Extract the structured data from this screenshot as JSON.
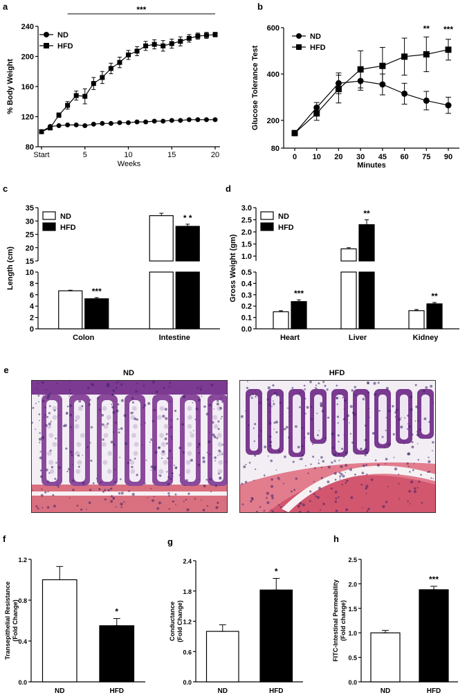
{
  "chart_data": [
    {
      "id": "a",
      "panel_label": "a",
      "type": "line",
      "xlabel": "Weeks",
      "ylabel": "% Body Weight",
      "ylim": [
        80,
        240
      ],
      "yticks": [
        "80",
        "120",
        "160",
        "200",
        "240"
      ],
      "xticks": [
        {
          "x": 0,
          "label": "Start"
        },
        {
          "x": 5,
          "label": "5"
        },
        {
          "x": 10,
          "label": "10"
        },
        {
          "x": 15,
          "label": "15"
        },
        {
          "x": 20,
          "label": "20"
        }
      ],
      "xlim": [
        0,
        20
      ],
      "legend": "top-left",
      "significance": "***",
      "series": [
        {
          "name": "ND",
          "marker": "circle",
          "x": [
            0,
            1,
            2,
            3,
            4,
            5,
            6,
            7,
            8,
            9,
            10,
            11,
            12,
            13,
            14,
            15,
            16,
            17,
            18,
            19,
            20
          ],
          "y": [
            100,
            107,
            108,
            109,
            109,
            108,
            110,
            111,
            111,
            112,
            112,
            113,
            113,
            114,
            114,
            115,
            115,
            116,
            116,
            116,
            116
          ],
          "err": [
            1,
            1,
            1,
            1,
            1,
            1,
            1,
            1,
            1,
            1,
            1,
            1,
            1,
            1,
            1,
            1,
            1,
            1,
            1,
            1,
            1
          ]
        },
        {
          "name": "HFD",
          "marker": "square",
          "x": [
            0,
            1,
            2,
            3,
            4,
            5,
            6,
            7,
            8,
            9,
            10,
            11,
            12,
            13,
            14,
            15,
            16,
            17,
            18,
            19,
            20
          ],
          "y": [
            100,
            105,
            122,
            135,
            148,
            147,
            164,
            172,
            184,
            192,
            202,
            207,
            214,
            216,
            214,
            217,
            220,
            224,
            227,
            228,
            229
          ],
          "err": [
            1,
            2,
            3,
            5,
            6,
            10,
            8,
            8,
            7,
            7,
            6,
            6,
            6,
            6,
            7,
            6,
            6,
            5,
            4,
            4,
            3
          ]
        }
      ]
    },
    {
      "id": "b",
      "panel_label": "b",
      "type": "line",
      "xlabel": "Minutes",
      "ylabel": "Glucose Tolerance Test",
      "ylim": [
        80,
        600
      ],
      "yticks": [
        "80",
        "200",
        "400",
        "600"
      ],
      "categories": [
        "0",
        "10",
        "20",
        "30",
        "45",
        "60",
        "75",
        "90"
      ],
      "legend": "top-left",
      "annotations": [
        "**",
        "***"
      ],
      "series": [
        {
          "name": "ND",
          "marker": "circle",
          "values": [
            145,
            255,
            360,
            370,
            355,
            315,
            285,
            265
          ],
          "err": [
            8,
            22,
            45,
            40,
            45,
            45,
            40,
            35
          ]
        },
        {
          "name": "HFD",
          "marker": "square",
          "values": [
            145,
            230,
            335,
            420,
            435,
            475,
            485,
            505
          ],
          "err": [
            8,
            30,
            60,
            80,
            80,
            80,
            75,
            45
          ]
        }
      ]
    },
    {
      "id": "c",
      "panel_label": "c",
      "type": "bar",
      "ylabel": "Length (cm)",
      "ylim_lower": [
        0,
        10
      ],
      "ylim_upper": [
        15,
        35
      ],
      "yticks_lower": [
        "0",
        "2",
        "4",
        "6",
        "8",
        "10"
      ],
      "yticks_upper": [
        "15",
        "20",
        "25",
        "30",
        "35"
      ],
      "categories": [
        "Colon",
        "Intestine"
      ],
      "legend": "top-left",
      "annotations": [
        "***",
        "* *"
      ],
      "series": [
        {
          "name": "ND",
          "fill": "white",
          "values": [
            6.7,
            32.0
          ],
          "err": [
            0.1,
            0.9
          ]
        },
        {
          "name": "HFD",
          "fill": "black",
          "values": [
            5.3,
            28.0
          ],
          "err": [
            0.2,
            0.8
          ]
        }
      ]
    },
    {
      "id": "d",
      "panel_label": "d",
      "type": "bar",
      "ylabel": "Gross Weight (gm)",
      "ylim_lower": [
        0,
        0.5
      ],
      "ylim_upper": [
        0.8,
        3.0
      ],
      "yticks_lower": [
        "0.0",
        "0.1",
        "0.2",
        "0.3",
        "0.4",
        "0.5"
      ],
      "yticks_upper": [
        "1.0",
        "1.5",
        "2.0",
        "2.5",
        "3.0"
      ],
      "categories": [
        "Heart",
        "Liver",
        "Kidney"
      ],
      "legend": "top-left",
      "annotations": [
        "***",
        "**",
        "**"
      ],
      "series": [
        {
          "name": "ND",
          "fill": "white",
          "values": [
            0.15,
            1.3,
            0.16
          ],
          "err": [
            0.01,
            0.05,
            0.01
          ]
        },
        {
          "name": "HFD",
          "fill": "black",
          "values": [
            0.24,
            2.3,
            0.22
          ],
          "err": [
            0.015,
            0.2,
            0.012
          ]
        }
      ]
    },
    {
      "id": "f",
      "panel_label": "f",
      "type": "bar",
      "ylabel": "Transepithelial Resistance (Fold Change)",
      "ylim": [
        0,
        1.2
      ],
      "yticks": [
        "0.0",
        "0.4",
        "0.8",
        "1.2"
      ],
      "categories": [
        "ND",
        "HFD"
      ],
      "annotations": [
        "",
        "*"
      ],
      "series": [
        {
          "name": "",
          "fills": [
            "white",
            "black"
          ],
          "values": [
            1.0,
            0.55
          ],
          "err": [
            0.13,
            0.07
          ]
        }
      ]
    },
    {
      "id": "g",
      "panel_label": "g",
      "type": "bar",
      "ylabel": "Conductance (Fold Change)",
      "ylim": [
        0,
        2.4
      ],
      "yticks": [
        "0.0",
        "0.6",
        "1.2",
        "1.8",
        "2.4"
      ],
      "categories": [
        "ND",
        "HFD"
      ],
      "annotations": [
        "",
        "*"
      ],
      "series": [
        {
          "name": "",
          "fills": [
            "white",
            "black"
          ],
          "values": [
            1.0,
            1.82
          ],
          "err": [
            0.13,
            0.23
          ]
        }
      ]
    },
    {
      "id": "h",
      "panel_label": "h",
      "type": "bar",
      "ylabel": "FITC-Intestinal Permeability (Fold change)",
      "ylim": [
        0,
        2.5
      ],
      "yticks": [
        "0.0",
        "0.5",
        "1.0",
        "1.5",
        "2.0",
        "2.5"
      ],
      "categories": [
        "ND",
        "HFD"
      ],
      "annotations": [
        "",
        "***"
      ],
      "series": [
        {
          "name": "",
          "fills": [
            "white",
            "black"
          ],
          "values": [
            1.0,
            1.88
          ],
          "err": [
            0.05,
            0.07
          ]
        }
      ]
    }
  ],
  "histology": {
    "panel_label": "e",
    "images": [
      {
        "label": "ND"
      },
      {
        "label": "HFD"
      }
    ]
  }
}
